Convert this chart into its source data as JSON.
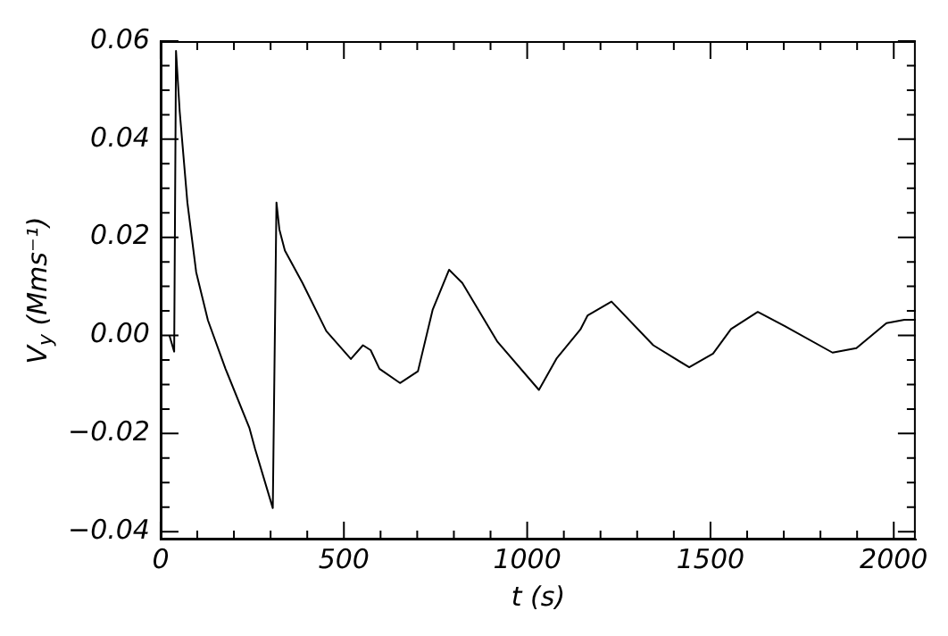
{
  "chart_data": {
    "type": "line",
    "xlabel": "t (s)",
    "ylabel": "V$_{y}$ (Mms⁻¹)",
    "grid": false,
    "legend": false,
    "marker": "none",
    "line_style": "solid",
    "xlim": [
      0,
      2060
    ],
    "ylim": [
      -0.0416,
      0.06
    ],
    "xticks": [
      0,
      {
        "value": 100,
        "label": null
      },
      {
        "value": 200,
        "label": null
      },
      {
        "value": 300,
        "label": null
      },
      {
        "value": 400,
        "label": null
      },
      500,
      {
        "value": 600,
        "label": null
      },
      {
        "value": 700,
        "label": null
      },
      {
        "value": 800,
        "label": null
      },
      {
        "value": 900,
        "label": null
      },
      1000,
      {
        "value": 1100,
        "label": null
      },
      {
        "value": 1200,
        "label": null
      },
      {
        "value": 1300,
        "label": null
      },
      {
        "value": 1400,
        "label": null
      },
      1500,
      {
        "value": 1600,
        "label": null
      },
      {
        "value": 1700,
        "label": null
      },
      {
        "value": 1800,
        "label": null
      },
      {
        "value": 1900,
        "label": null
      },
      2000
    ],
    "yticks": [
      {
        "value": -0.04,
        "label": "−0.04"
      },
      {
        "value": -0.035,
        "label": null
      },
      {
        "value": -0.03,
        "label": null
      },
      {
        "value": -0.025,
        "label": null
      },
      {
        "value": -0.02,
        "label": "−0.02"
      },
      {
        "value": -0.015,
        "label": null
      },
      {
        "value": -0.01,
        "label": null
      },
      {
        "value": -0.005,
        "label": null
      },
      {
        "value": 0,
        "label": "0.00"
      },
      {
        "value": 0.005,
        "label": null
      },
      {
        "value": 0.01,
        "label": null
      },
      {
        "value": 0.015,
        "label": null
      },
      {
        "value": 0.02,
        "label": "0.02"
      },
      {
        "value": 0.025,
        "label": null
      },
      {
        "value": 0.03,
        "label": null
      },
      {
        "value": 0.035,
        "label": null
      },
      {
        "value": 0.04,
        "label": "0.04"
      },
      {
        "value": 0.045,
        "label": null
      },
      {
        "value": 0.05,
        "label": null
      },
      {
        "value": 0.055,
        "label": null
      },
      {
        "value": 0.06,
        "label": "0.06"
      }
    ],
    "series": [
      {
        "color": "#000000",
        "x": [
          24,
          37,
          42,
          52,
          73,
          97,
          129,
          177,
          242,
          258,
          306,
          316,
          324,
          339,
          387,
          452,
          519,
          552,
          573,
          597,
          653,
          702,
          742,
          787,
          823,
          919,
          1032,
          1081,
          1145,
          1165,
          1230,
          1344,
          1442,
          1507,
          1556,
          1629,
          1703,
          1833,
          1898,
          1980,
          2029,
          2060
        ],
        "values": [
          0,
          -0.0033,
          0.058,
          0.0457,
          0.0271,
          0.0129,
          0.0031,
          -0.0068,
          -0.0188,
          -0.0232,
          -0.0352,
          0.0271,
          0.0216,
          0.0173,
          0.0107,
          0.0009,
          -0.0048,
          -0.002,
          -0.003,
          -0.0068,
          -0.0097,
          -0.0073,
          0.0052,
          0.0134,
          0.0107,
          -0.0013,
          -0.0111,
          -0.0046,
          0.0012,
          0.0041,
          0.0069,
          -0.002,
          -0.0065,
          -0.0037,
          0.0013,
          0.0048,
          0.0019,
          -0.0035,
          -0.0026,
          0.0025,
          0.0032,
          0.0032
        ]
      }
    ]
  }
}
